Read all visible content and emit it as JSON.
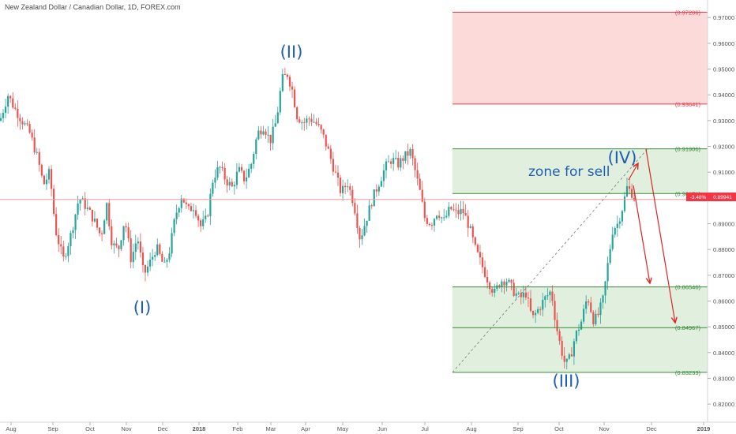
{
  "chart_data": {
    "type": "candlestick",
    "title": "New Zealand Dollar / Canadian Dollar, 1D, FOREX.com",
    "ylim": [
      0.813,
      0.9768
    ],
    "y_ticks": [
      "0.97000",
      "0.96000",
      "0.95000",
      "0.94000",
      "0.93000",
      "0.92000",
      "0.91000",
      "0.90000",
      "0.89000",
      "0.88000",
      "0.87000",
      "0.86000",
      "0.85000",
      "0.84000",
      "0.83000",
      "0.82000"
    ],
    "x_ticks": [
      "Aug",
      "Sep",
      "Oct",
      "Nov",
      "Dec",
      "2018",
      "Feb",
      "Mar",
      "Apr",
      "May",
      "Jun",
      "Jul",
      "Aug",
      "Sep",
      "Oct",
      "Nov",
      "Dec",
      "2019"
    ],
    "x_tick_bold": [
      "2018",
      "2019"
    ],
    "current_price": 0.89941,
    "current_price_label": "0.89941",
    "change_label": "-3.48%",
    "price_path": [
      [
        0,
        0.93
      ],
      [
        10,
        0.94
      ],
      [
        18,
        0.935
      ],
      [
        28,
        0.93
      ],
      [
        38,
        0.925
      ],
      [
        48,
        0.915
      ],
      [
        55,
        0.905
      ],
      [
        63,
        0.91
      ],
      [
        70,
        0.888
      ],
      [
        80,
        0.876
      ],
      [
        90,
        0.886
      ],
      [
        100,
        0.9
      ],
      [
        108,
        0.897
      ],
      [
        118,
        0.892
      ],
      [
        128,
        0.885
      ],
      [
        135,
        0.898
      ],
      [
        142,
        0.882
      ],
      [
        150,
        0.88
      ],
      [
        158,
        0.892
      ],
      [
        166,
        0.876
      ],
      [
        174,
        0.885
      ],
      [
        182,
        0.87
      ],
      [
        190,
        0.875
      ],
      [
        198,
        0.881
      ],
      [
        208,
        0.873
      ],
      [
        215,
        0.88
      ],
      [
        222,
        0.893
      ],
      [
        230,
        0.901
      ],
      [
        238,
        0.895
      ],
      [
        246,
        0.897
      ],
      [
        254,
        0.889
      ],
      [
        262,
        0.892
      ],
      [
        270,
        0.908
      ],
      [
        278,
        0.912
      ],
      [
        286,
        0.907
      ],
      [
        294,
        0.904
      ],
      [
        302,
        0.911
      ],
      [
        310,
        0.907
      ],
      [
        318,
        0.913
      ],
      [
        326,
        0.925
      ],
      [
        334,
        0.928
      ],
      [
        342,
        0.922
      ],
      [
        350,
        0.93
      ],
      [
        357,
        0.946
      ],
      [
        364,
        0.948
      ],
      [
        370,
        0.942
      ],
      [
        376,
        0.932
      ],
      [
        384,
        0.929
      ],
      [
        392,
        0.931
      ],
      [
        400,
        0.929
      ],
      [
        408,
        0.925
      ],
      [
        416,
        0.918
      ],
      [
        424,
        0.91
      ],
      [
        432,
        0.902
      ],
      [
        440,
        0.906
      ],
      [
        448,
        0.898
      ],
      [
        456,
        0.884
      ],
      [
        464,
        0.892
      ],
      [
        472,
        0.9
      ],
      [
        480,
        0.906
      ],
      [
        488,
        0.912
      ],
      [
        496,
        0.915
      ],
      [
        504,
        0.913
      ],
      [
        512,
        0.916
      ],
      [
        520,
        0.918
      ],
      [
        526,
        0.91
      ],
      [
        532,
        0.902
      ],
      [
        538,
        0.892
      ],
      [
        546,
        0.89
      ],
      [
        554,
        0.895
      ],
      [
        562,
        0.891
      ],
      [
        570,
        0.896
      ],
      [
        578,
        0.894
      ],
      [
        586,
        0.895
      ],
      [
        594,
        0.889
      ],
      [
        602,
        0.88
      ],
      [
        610,
        0.874
      ],
      [
        618,
        0.868
      ],
      [
        626,
        0.863
      ],
      [
        634,
        0.868
      ],
      [
        642,
        0.868
      ],
      [
        650,
        0.864
      ],
      [
        658,
        0.861
      ],
      [
        666,
        0.863
      ],
      [
        674,
        0.853
      ],
      [
        682,
        0.857
      ],
      [
        690,
        0.861
      ],
      [
        698,
        0.864
      ],
      [
        704,
        0.851
      ],
      [
        710,
        0.842
      ],
      [
        716,
        0.835
      ],
      [
        722,
        0.838
      ],
      [
        728,
        0.846
      ],
      [
        736,
        0.852
      ],
      [
        744,
        0.862
      ],
      [
        752,
        0.852
      ],
      [
        758,
        0.855
      ],
      [
        764,
        0.861
      ],
      [
        770,
        0.875
      ],
      [
        776,
        0.888
      ],
      [
        782,
        0.89
      ],
      [
        788,
        0.896
      ],
      [
        794,
        0.904
      ],
      [
        800,
        0.902
      ],
      [
        804,
        0.8994
      ]
    ],
    "levels": [
      {
        "price": 0.97206,
        "label": "(0.97206)",
        "color": "#f23645"
      },
      {
        "price": 0.93641,
        "label": "(0.93641)",
        "color": "#f23645"
      },
      {
        "price": 0.91906,
        "label": "(0.91906)",
        "color": "#3a8a3a"
      },
      {
        "price": 0.90171,
        "label": "(0.90171)",
        "color": "#3a8a3a"
      },
      {
        "price": 0.86546,
        "label": "(0.86546)",
        "color": "#3a8a3a"
      },
      {
        "price": 0.84967,
        "label": "(0.84967)",
        "color": "#3a8a3a"
      },
      {
        "price": 0.83233,
        "label": "(0.83233)",
        "color": "#3a8a3a"
      }
    ],
    "zones": [
      {
        "from": 0.93641,
        "to": 0.97206,
        "color": "#fbd3d3"
      },
      {
        "from": 0.90171,
        "to": 0.91906,
        "color": "#dcecd9"
      },
      {
        "from": 0.83233,
        "to": 0.86546,
        "color": "#dcecd9"
      }
    ],
    "annotations": {
      "wave_I": "(I)",
      "wave_II": "(II)",
      "wave_III": "(III)",
      "wave_IV": "(IV)",
      "zone_text": "zone for sell"
    },
    "colors": {
      "up": "#26a69a",
      "down": "#ef5350",
      "arrow": "#e02424",
      "wave_text": "#1f5fb3",
      "price_line": "#f29a9a"
    }
  }
}
